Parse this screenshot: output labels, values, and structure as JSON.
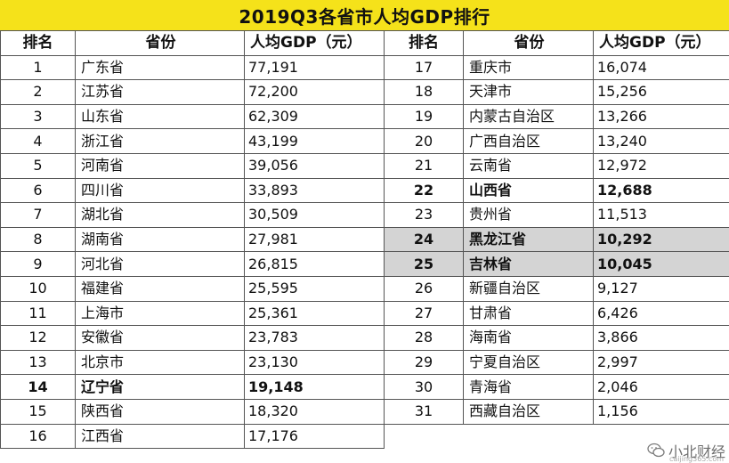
{
  "title": "2019Q3各省市人均GDP排行",
  "headers": {
    "rank": "排名",
    "province": "省份",
    "gdp": "人均GDP（元）"
  },
  "left_rows": [
    {
      "rank": "1",
      "province": "广东省",
      "gdp": "77,191"
    },
    {
      "rank": "2",
      "province": "江苏省",
      "gdp": "72,200"
    },
    {
      "rank": "3",
      "province": "山东省",
      "gdp": "62,309"
    },
    {
      "rank": "4",
      "province": "浙江省",
      "gdp": "43,199"
    },
    {
      "rank": "5",
      "province": "河南省",
      "gdp": "39,056"
    },
    {
      "rank": "6",
      "province": "四川省",
      "gdp": "33,893"
    },
    {
      "rank": "7",
      "province": "湖北省",
      "gdp": "30,509"
    },
    {
      "rank": "8",
      "province": "湖南省",
      "gdp": "27,981"
    },
    {
      "rank": "9",
      "province": "河北省",
      "gdp": "26,815"
    },
    {
      "rank": "10",
      "province": "福建省",
      "gdp": "25,595"
    },
    {
      "rank": "11",
      "province": "上海市",
      "gdp": "25,361"
    },
    {
      "rank": "12",
      "province": "安徽省",
      "gdp": "23,783"
    },
    {
      "rank": "13",
      "province": "北京市",
      "gdp": "23,130"
    },
    {
      "rank": "14",
      "province": "辽宁省",
      "gdp": "19,148"
    },
    {
      "rank": "15",
      "province": "陕西省",
      "gdp": "18,320"
    },
    {
      "rank": "16",
      "province": "江西省",
      "gdp": "17,176"
    }
  ],
  "right_rows": [
    {
      "rank": "17",
      "province": "重庆市",
      "gdp": "16,074"
    },
    {
      "rank": "18",
      "province": "天津市",
      "gdp": "15,256"
    },
    {
      "rank": "19",
      "province": "内蒙古自治区",
      "gdp": "13,266"
    },
    {
      "rank": "20",
      "province": "广西自治区",
      "gdp": "13,240"
    },
    {
      "rank": "21",
      "province": "云南省",
      "gdp": "12,972"
    },
    {
      "rank": "22",
      "province": "山西省",
      "gdp": "12,688"
    },
    {
      "rank": "23",
      "province": "贵州省",
      "gdp": "11,513"
    },
    {
      "rank": "24",
      "province": "黑龙江省",
      "gdp": "10,292"
    },
    {
      "rank": "25",
      "province": "吉林省",
      "gdp": "10,045"
    },
    {
      "rank": "26",
      "province": "新疆自治区",
      "gdp": "9,127"
    },
    {
      "rank": "27",
      "province": "甘肃省",
      "gdp": "6,426"
    },
    {
      "rank": "28",
      "province": "海南省",
      "gdp": "3,866"
    },
    {
      "rank": "29",
      "province": "宁夏自治区",
      "gdp": "2,997"
    },
    {
      "rank": "30",
      "province": "青海省",
      "gdp": "2,046"
    },
    {
      "rank": "31",
      "province": "西藏自治区",
      "gdp": "1,156"
    }
  ],
  "emphasis": {
    "bold_ranks": [
      "14",
      "22"
    ],
    "highlight_ranks": [
      "24",
      "25"
    ],
    "highlight_color": "#d4d4d4",
    "title_bg": "#f5e21a"
  },
  "watermark": {
    "text": "小北财经",
    "icon": "wechat-icon",
    "small": "caijing365.com"
  }
}
